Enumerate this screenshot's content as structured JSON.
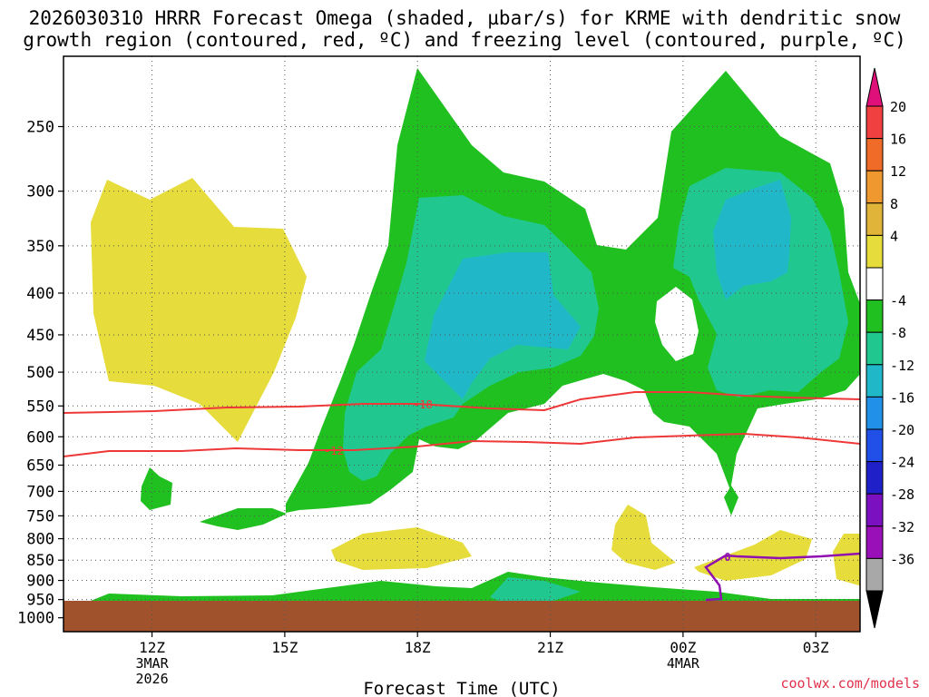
{
  "title": {
    "line1": "2026030310 HRRR Forecast Omega (shaded, µbar/s) for KRME with dendritic snow",
    "line2": "growth region (contoured, red, ºC) and freezing level (contoured, purple, ºC)"
  },
  "credit": "coolwx.com/models",
  "chart_data": {
    "type": "contour-cross-section",
    "title": "2026030310 HRRR Forecast Omega (shaded, µbar/s) for KRME with dendritic snow growth region (contoured, red, ºC) and freezing level (contoured, purple, ºC)",
    "xlabel": "Forecast Time (UTC)",
    "ylabel": "",
    "x_range_hours": [
      10,
      28
    ],
    "x_ticks": [
      {
        "hour": 12,
        "label": "12Z",
        "sub1": "3MAR",
        "sub2": "2026"
      },
      {
        "hour": 15,
        "label": "15Z",
        "sub1": "",
        "sub2": ""
      },
      {
        "hour": 18,
        "label": "18Z",
        "sub1": "",
        "sub2": ""
      },
      {
        "hour": 21,
        "label": "21Z",
        "sub1": "",
        "sub2": ""
      },
      {
        "hour": 24,
        "label": "00Z",
        "sub1": "4MAR",
        "sub2": ""
      },
      {
        "hour": 27,
        "label": "03Z",
        "sub1": "",
        "sub2": ""
      }
    ],
    "y_ticks": [
      250,
      300,
      350,
      400,
      450,
      500,
      550,
      600,
      650,
      700,
      750,
      800,
      850,
      900,
      950,
      1000
    ],
    "y_axis": "pressure (hPa), log scale, inverted",
    "grid": true,
    "colorbar": {
      "position": "right",
      "labels": [
        "20",
        "16",
        "12",
        "8",
        "4",
        "-4",
        "-8",
        "-12",
        "-16",
        "-20",
        "-24",
        "-28",
        "-32",
        "-36"
      ],
      "colors": [
        "#e0107a",
        "#f04040",
        "#f06a28",
        "#f09830",
        "#e0b438",
        "#e6dc3c",
        "#ffffff",
        "#20c020",
        "#20c890",
        "#20b8c8",
        "#2090e8",
        "#2050e8",
        "#2020c8",
        "#7a10c0",
        "#9a10b8",
        "#a8a8a8",
        "#000000"
      ]
    },
    "shaded_regions": [
      {
        "level": "4 to 8",
        "color": "#e6dc3c",
        "desc": "upward-positive region aloft ~290-610 hPa near 11-15Z"
      },
      {
        "level": "-4 to -8",
        "color": "#20c020",
        "desc": "broad upward motion 16Z-28Z, 240-700 hPa"
      },
      {
        "level": "-8 to -12",
        "color": "#20c890",
        "desc": "embedded cores near 17-22Z and 24-27Z"
      },
      {
        "level": "-12 to -16",
        "color": "#20b8c8",
        "desc": "strongest cores ~350-500 hPa"
      }
    ],
    "contours": [
      {
        "label": "-18",
        "color": "#ee3838",
        "kind": "dendritic growth region",
        "pressure_hPa_approx": [
          560,
          550,
          550,
          555,
          560,
          530,
          540,
          540
        ]
      },
      {
        "label": "-12",
        "color": "#ee3838",
        "kind": "dendritic growth region",
        "pressure_hPa_approx": [
          640,
          625,
          630,
          620,
          610,
          605,
          605,
          615
        ]
      },
      {
        "label": "0",
        "color": "#9010b0",
        "kind": "freezing level",
        "pressure_hPa_approx": [
          960,
          870,
          850,
          860,
          845
        ]
      }
    ],
    "ground": {
      "color": "#a0522d",
      "below_hPa": 970
    }
  }
}
